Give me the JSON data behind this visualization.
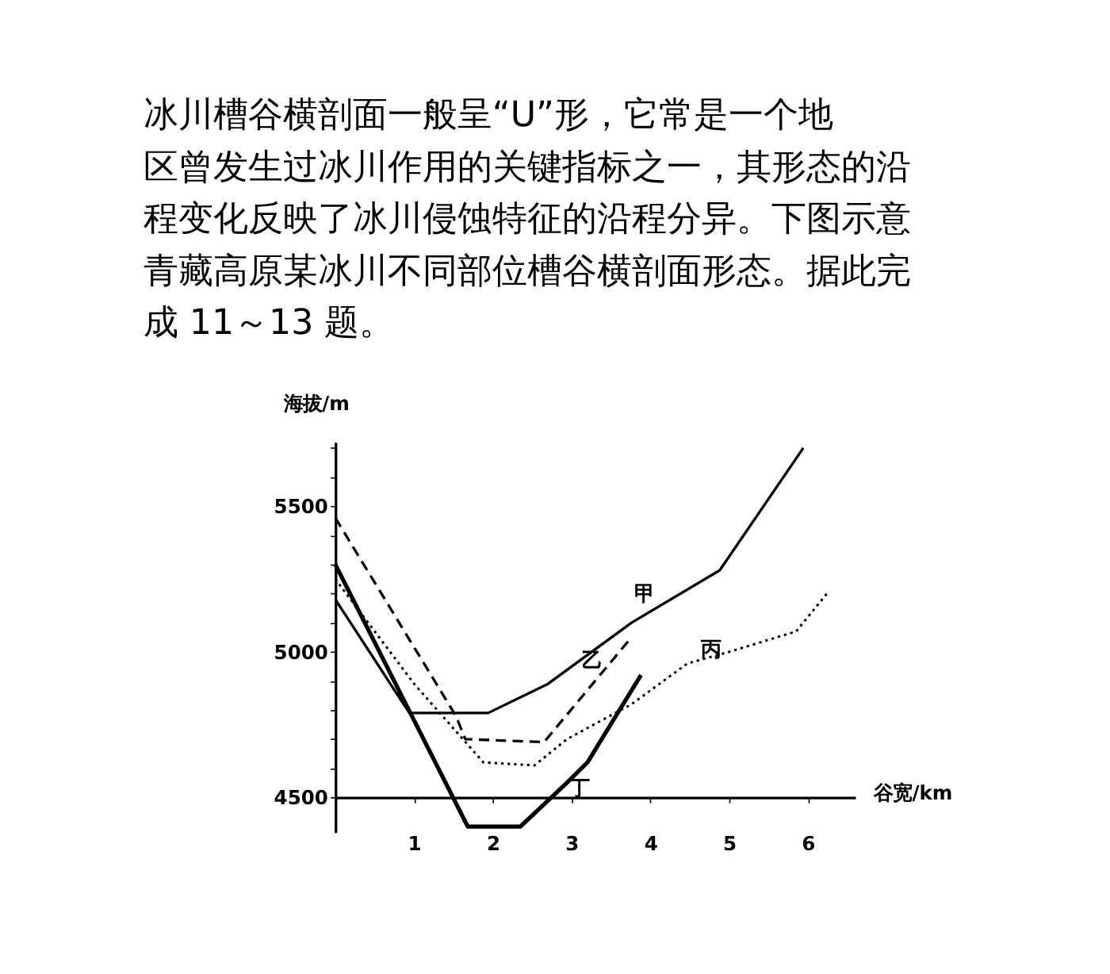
{
  "chart_data": {
    "type": "line",
    "annotations": [
      "冰川槽谷横剖面一般呈“U”形，它常是一个地",
      "区曾发生过冰川作用的关键指标之一，其形态的沿",
      "程变化反映了冰川侵蚀特征的沿程分异。下图示意",
      "青藏高原某冰川不同部位槽谷横剖面形态。据此完",
      "成 11～13 题。"
    ],
    "xlabel": "谷宽/km",
    "ylabel": "海拔/m",
    "xlim": [
      0,
      6.6
    ],
    "ylim": [
      4380,
      5720
    ],
    "xticks": [
      1,
      2,
      3,
      4,
      5,
      6
    ],
    "yticks": [
      4500,
      {
        "value": 4600,
        "label": null
      },
      {
        "value": 4700,
        "label": null
      },
      {
        "value": 4800,
        "label": null
      },
      {
        "value": 4900,
        "label": null
      },
      5000,
      {
        "value": 5100,
        "label": null
      },
      {
        "value": 5200,
        "label": null
      },
      {
        "value": 5300,
        "label": null
      },
      {
        "value": 5400,
        "label": null
      },
      5500,
      {
        "value": 5600,
        "label": null
      },
      {
        "value": 5700,
        "label": null
      }
    ],
    "grid": false,
    "legend": false,
    "marker": "none",
    "series": [
      {
        "name": "甲",
        "color": "#000000",
        "line_style": "solid",
        "x": [
          0,
          0.94,
          1.94,
          2.7,
          3.76,
          4.88,
          5.94
        ],
        "values": [
          5180,
          4790,
          4790,
          4890,
          5100,
          5280,
          5700
        ]
      },
      {
        "name": "乙",
        "color": "#000000",
        "line_style": "dashed",
        "x": [
          0,
          1.53,
          1.65,
          2.65,
          3.76
        ],
        "values": [
          5460,
          4780,
          4700,
          4690,
          5050
        ]
      },
      {
        "name": "丙",
        "color": "#000000",
        "line_style": "dotted",
        "x": [
          0,
          1.0,
          1.88,
          2.53,
          2.94,
          3.76,
          4.47,
          5.0,
          5.85,
          6.24
        ],
        "values": [
          5250,
          4890,
          4620,
          4610,
          4700,
          4820,
          4960,
          5000,
          5070,
          5200
        ]
      },
      {
        "name": "丁",
        "color": "#000000",
        "line_style": "solid",
        "x": [
          0,
          1.68,
          2.35,
          2.94,
          3.2,
          3.88
        ],
        "values": [
          5300,
          4400,
          4400,
          4550,
          4620,
          4920
        ]
      }
    ]
  }
}
